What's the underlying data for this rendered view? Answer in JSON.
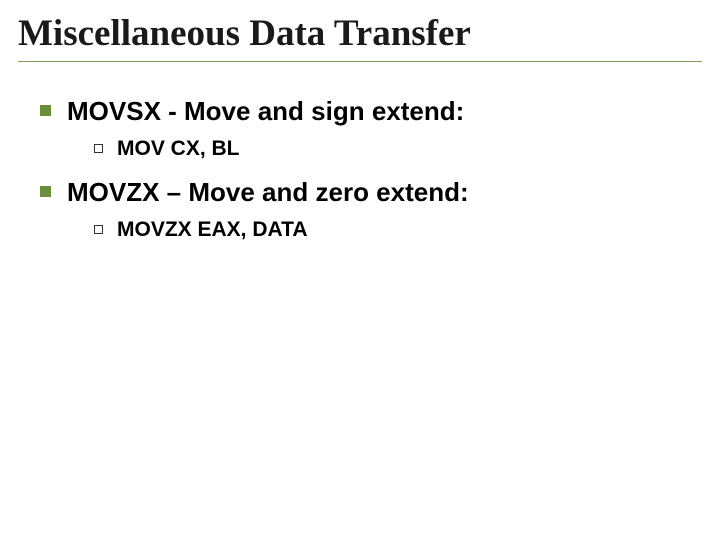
{
  "slide": {
    "title": "Miscellaneous Data Transfer",
    "title_color": "#1a1a1a",
    "title_font": "Times New Roman",
    "title_fontsize": 37,
    "title_weight": "bold",
    "underline_color": "#7a9a5e",
    "background_color": "#ffffff",
    "bullet_level1_color": "#6b8e3a",
    "bullet_level2_border": "#333333",
    "body_font": "Arial",
    "items": [
      {
        "text": "MOVSX - Move and sign extend:",
        "fontsize": 26,
        "weight": "bold",
        "sub": [
          {
            "text": "MOV CX, BL",
            "fontsize": 21,
            "weight": "bold"
          }
        ]
      },
      {
        "text": "MOVZX – Move and zero extend:",
        "fontsize": 26,
        "weight": "bold",
        "sub": [
          {
            "text": "MOVZX EAX, DATA",
            "fontsize": 21,
            "weight": "bold"
          }
        ]
      }
    ]
  }
}
